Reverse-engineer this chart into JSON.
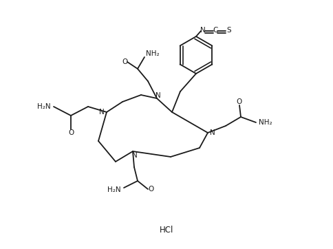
{
  "background_color": "#ffffff",
  "line_color": "#1a1a1a",
  "text_color": "#1a1a1a",
  "font_size": 7.5,
  "line_width": 1.3,
  "figsize": [
    4.84,
    3.62
  ],
  "dpi": 100,
  "HCl_label": "HCl",
  "N_label": "N",
  "O_label": "O",
  "NH2_label": "NH₂",
  "H2N_label": "H₂N"
}
